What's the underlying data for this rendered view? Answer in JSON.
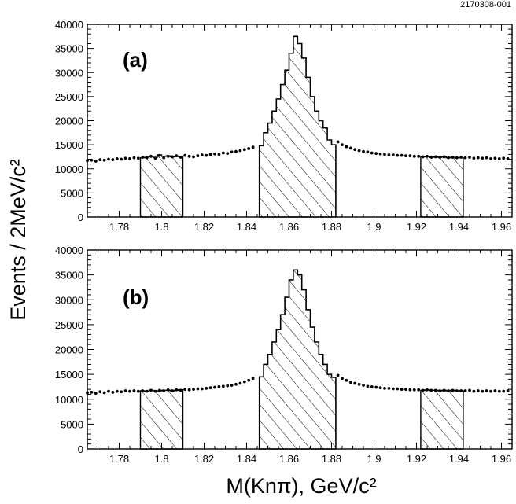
{
  "figure_id": "2170308-001",
  "ylabel": "Events / 2MeV/c²",
  "xlabel": "M(Knπ), GeV/c²",
  "colors": {
    "axis": "#000000",
    "hatch": "#000000",
    "background": "#ffffff"
  },
  "chart_data": [
    {
      "type": "area",
      "panel_label": "(a)",
      "xlim": [
        1.765,
        1.965
      ],
      "ylim": [
        0,
        40000
      ],
      "xticks": [
        "1.78",
        "1.8",
        "1.82",
        "1.84",
        "1.86",
        "1.88",
        "1.9",
        "1.92",
        "1.94",
        "1.96"
      ],
      "yticks": [
        "0",
        "5000",
        "10000",
        "15000",
        "20000",
        "25000",
        "30000",
        "35000",
        "40000"
      ],
      "grid": false,
      "bin_width": 0.002,
      "scatter_points": [
        [
          1.765,
          11700
        ],
        [
          1.767,
          11800
        ],
        [
          1.769,
          11600
        ],
        [
          1.771,
          11900
        ],
        [
          1.773,
          11800
        ],
        [
          1.775,
          12000
        ],
        [
          1.777,
          11900
        ],
        [
          1.779,
          12100
        ],
        [
          1.781,
          12000
        ],
        [
          1.783,
          12200
        ],
        [
          1.785,
          12100
        ],
        [
          1.787,
          12300
        ],
        [
          1.789,
          12200
        ],
        [
          1.791,
          12400
        ],
        [
          1.793,
          12300
        ],
        [
          1.795,
          12600
        ],
        [
          1.797,
          12200
        ],
        [
          1.799,
          12800
        ],
        [
          1.801,
          12300
        ],
        [
          1.803,
          12600
        ],
        [
          1.805,
          12500
        ],
        [
          1.807,
          12700
        ],
        [
          1.809,
          12400
        ],
        [
          1.811,
          12800
        ],
        [
          1.813,
          12600
        ],
        [
          1.815,
          12500
        ],
        [
          1.817,
          12700
        ],
        [
          1.819,
          12900
        ],
        [
          1.821,
          12800
        ],
        [
          1.823,
          13000
        ],
        [
          1.825,
          13100
        ],
        [
          1.827,
          13000
        ],
        [
          1.829,
          13300
        ],
        [
          1.831,
          13200
        ],
        [
          1.833,
          13500
        ],
        [
          1.835,
          13600
        ],
        [
          1.837,
          13800
        ],
        [
          1.839,
          14000
        ],
        [
          1.841,
          14200
        ],
        [
          1.843,
          14500
        ],
        [
          1.883,
          15600
        ],
        [
          1.885,
          15000
        ],
        [
          1.887,
          14600
        ],
        [
          1.889,
          14300
        ],
        [
          1.891,
          14000
        ],
        [
          1.893,
          13800
        ],
        [
          1.895,
          13600
        ],
        [
          1.897,
          13500
        ],
        [
          1.899,
          13300
        ],
        [
          1.901,
          13200
        ],
        [
          1.903,
          13100
        ],
        [
          1.905,
          13000
        ],
        [
          1.907,
          12900
        ],
        [
          1.909,
          12900
        ],
        [
          1.911,
          12800
        ],
        [
          1.913,
          12800
        ],
        [
          1.915,
          12700
        ],
        [
          1.917,
          12700
        ],
        [
          1.919,
          12600
        ],
        [
          1.921,
          12600
        ],
        [
          1.923,
          12500
        ],
        [
          1.925,
          12600
        ],
        [
          1.927,
          12400
        ],
        [
          1.929,
          12500
        ],
        [
          1.931,
          12400
        ],
        [
          1.933,
          12500
        ],
        [
          1.935,
          12300
        ],
        [
          1.937,
          12400
        ],
        [
          1.939,
          12300
        ],
        [
          1.941,
          12400
        ],
        [
          1.943,
          12300
        ],
        [
          1.945,
          12400
        ],
        [
          1.947,
          12200
        ],
        [
          1.949,
          12300
        ],
        [
          1.951,
          12200
        ],
        [
          1.953,
          12300
        ],
        [
          1.955,
          12100
        ],
        [
          1.957,
          12200
        ],
        [
          1.959,
          12100
        ],
        [
          1.961,
          12200
        ],
        [
          1.963,
          12100
        ]
      ],
      "signal_bins": {
        "x_start": 1.846,
        "values": [
          14800,
          17500,
          19500,
          22000,
          24500,
          27500,
          30500,
          34000,
          37500,
          36000,
          33000,
          29000,
          25000,
          22000,
          20000,
          18500,
          16000,
          15000
        ]
      },
      "sideband_regions": [
        {
          "x_start": 1.79,
          "values": [
            12300,
            12400,
            12600,
            12400,
            12900,
            12600,
            12700,
            12500,
            12600,
            12500
          ]
        },
        {
          "x_start": 1.922,
          "values": [
            12500,
            12600,
            12400,
            12500,
            12400,
            12500,
            12300,
            12400,
            12300,
            12300
          ]
        }
      ]
    },
    {
      "type": "area",
      "panel_label": "(b)",
      "xlim": [
        1.765,
        1.965
      ],
      "ylim": [
        0,
        40000
      ],
      "xticks": [
        "1.78",
        "1.8",
        "1.82",
        "1.84",
        "1.86",
        "1.88",
        "1.9",
        "1.92",
        "1.94",
        "1.96"
      ],
      "yticks": [
        "0",
        "5000",
        "10000",
        "15000",
        "20000",
        "25000",
        "30000",
        "35000",
        "40000"
      ],
      "grid": false,
      "bin_width": 0.002,
      "scatter_points": [
        [
          1.765,
          11300
        ],
        [
          1.767,
          11400
        ],
        [
          1.769,
          11200
        ],
        [
          1.771,
          11500
        ],
        [
          1.773,
          11300
        ],
        [
          1.775,
          11600
        ],
        [
          1.777,
          11400
        ],
        [
          1.779,
          11600
        ],
        [
          1.781,
          11500
        ],
        [
          1.783,
          11700
        ],
        [
          1.785,
          11600
        ],
        [
          1.787,
          11700
        ],
        [
          1.789,
          11600
        ],
        [
          1.791,
          11700
        ],
        [
          1.793,
          11600
        ],
        [
          1.795,
          11800
        ],
        [
          1.797,
          11600
        ],
        [
          1.799,
          11800
        ],
        [
          1.801,
          11700
        ],
        [
          1.803,
          11900
        ],
        [
          1.805,
          11700
        ],
        [
          1.807,
          11900
        ],
        [
          1.809,
          11800
        ],
        [
          1.811,
          12000
        ],
        [
          1.813,
          11900
        ],
        [
          1.815,
          12000
        ],
        [
          1.817,
          12100
        ],
        [
          1.819,
          12100
        ],
        [
          1.821,
          12200
        ],
        [
          1.823,
          12300
        ],
        [
          1.825,
          12400
        ],
        [
          1.827,
          12500
        ],
        [
          1.829,
          12600
        ],
        [
          1.831,
          12700
        ],
        [
          1.833,
          12800
        ],
        [
          1.835,
          13000
        ],
        [
          1.837,
          13200
        ],
        [
          1.839,
          13500
        ],
        [
          1.841,
          13800
        ],
        [
          1.843,
          14200
        ],
        [
          1.883,
          14800
        ],
        [
          1.885,
          14200
        ],
        [
          1.887,
          13800
        ],
        [
          1.889,
          13400
        ],
        [
          1.891,
          13200
        ],
        [
          1.893,
          13000
        ],
        [
          1.895,
          12800
        ],
        [
          1.897,
          12600
        ],
        [
          1.899,
          12500
        ],
        [
          1.901,
          12400
        ],
        [
          1.903,
          12300
        ],
        [
          1.905,
          12200
        ],
        [
          1.907,
          12200
        ],
        [
          1.909,
          12100
        ],
        [
          1.911,
          12100
        ],
        [
          1.913,
          12000
        ],
        [
          1.915,
          12000
        ],
        [
          1.917,
          11900
        ],
        [
          1.919,
          11900
        ],
        [
          1.921,
          11900
        ],
        [
          1.923,
          11800
        ],
        [
          1.925,
          11900
        ],
        [
          1.927,
          11800
        ],
        [
          1.929,
          11800
        ],
        [
          1.931,
          11700
        ],
        [
          1.933,
          11800
        ],
        [
          1.935,
          11700
        ],
        [
          1.937,
          11800
        ],
        [
          1.939,
          11700
        ],
        [
          1.941,
          11700
        ],
        [
          1.943,
          11700
        ],
        [
          1.945,
          11800
        ],
        [
          1.947,
          11600
        ],
        [
          1.949,
          11700
        ],
        [
          1.951,
          11600
        ],
        [
          1.953,
          11700
        ],
        [
          1.955,
          11600
        ],
        [
          1.957,
          11700
        ],
        [
          1.959,
          11600
        ],
        [
          1.961,
          11600
        ],
        [
          1.963,
          11700
        ]
      ],
      "signal_bins": {
        "x_start": 1.846,
        "values": [
          14500,
          17000,
          19000,
          21500,
          24000,
          27000,
          30500,
          34000,
          36000,
          35000,
          32000,
          28000,
          24500,
          21500,
          19000,
          17000,
          15000,
          14400
        ]
      },
      "sideband_regions": [
        {
          "x_start": 1.79,
          "values": [
            11700,
            11600,
            11800,
            11700,
            11700,
            11800,
            11800,
            11700,
            11800,
            11900
          ]
        },
        {
          "x_start": 1.922,
          "values": [
            11800,
            11900,
            11800,
            11800,
            11700,
            11800,
            11700,
            11800,
            11700,
            11700
          ]
        }
      ]
    }
  ]
}
